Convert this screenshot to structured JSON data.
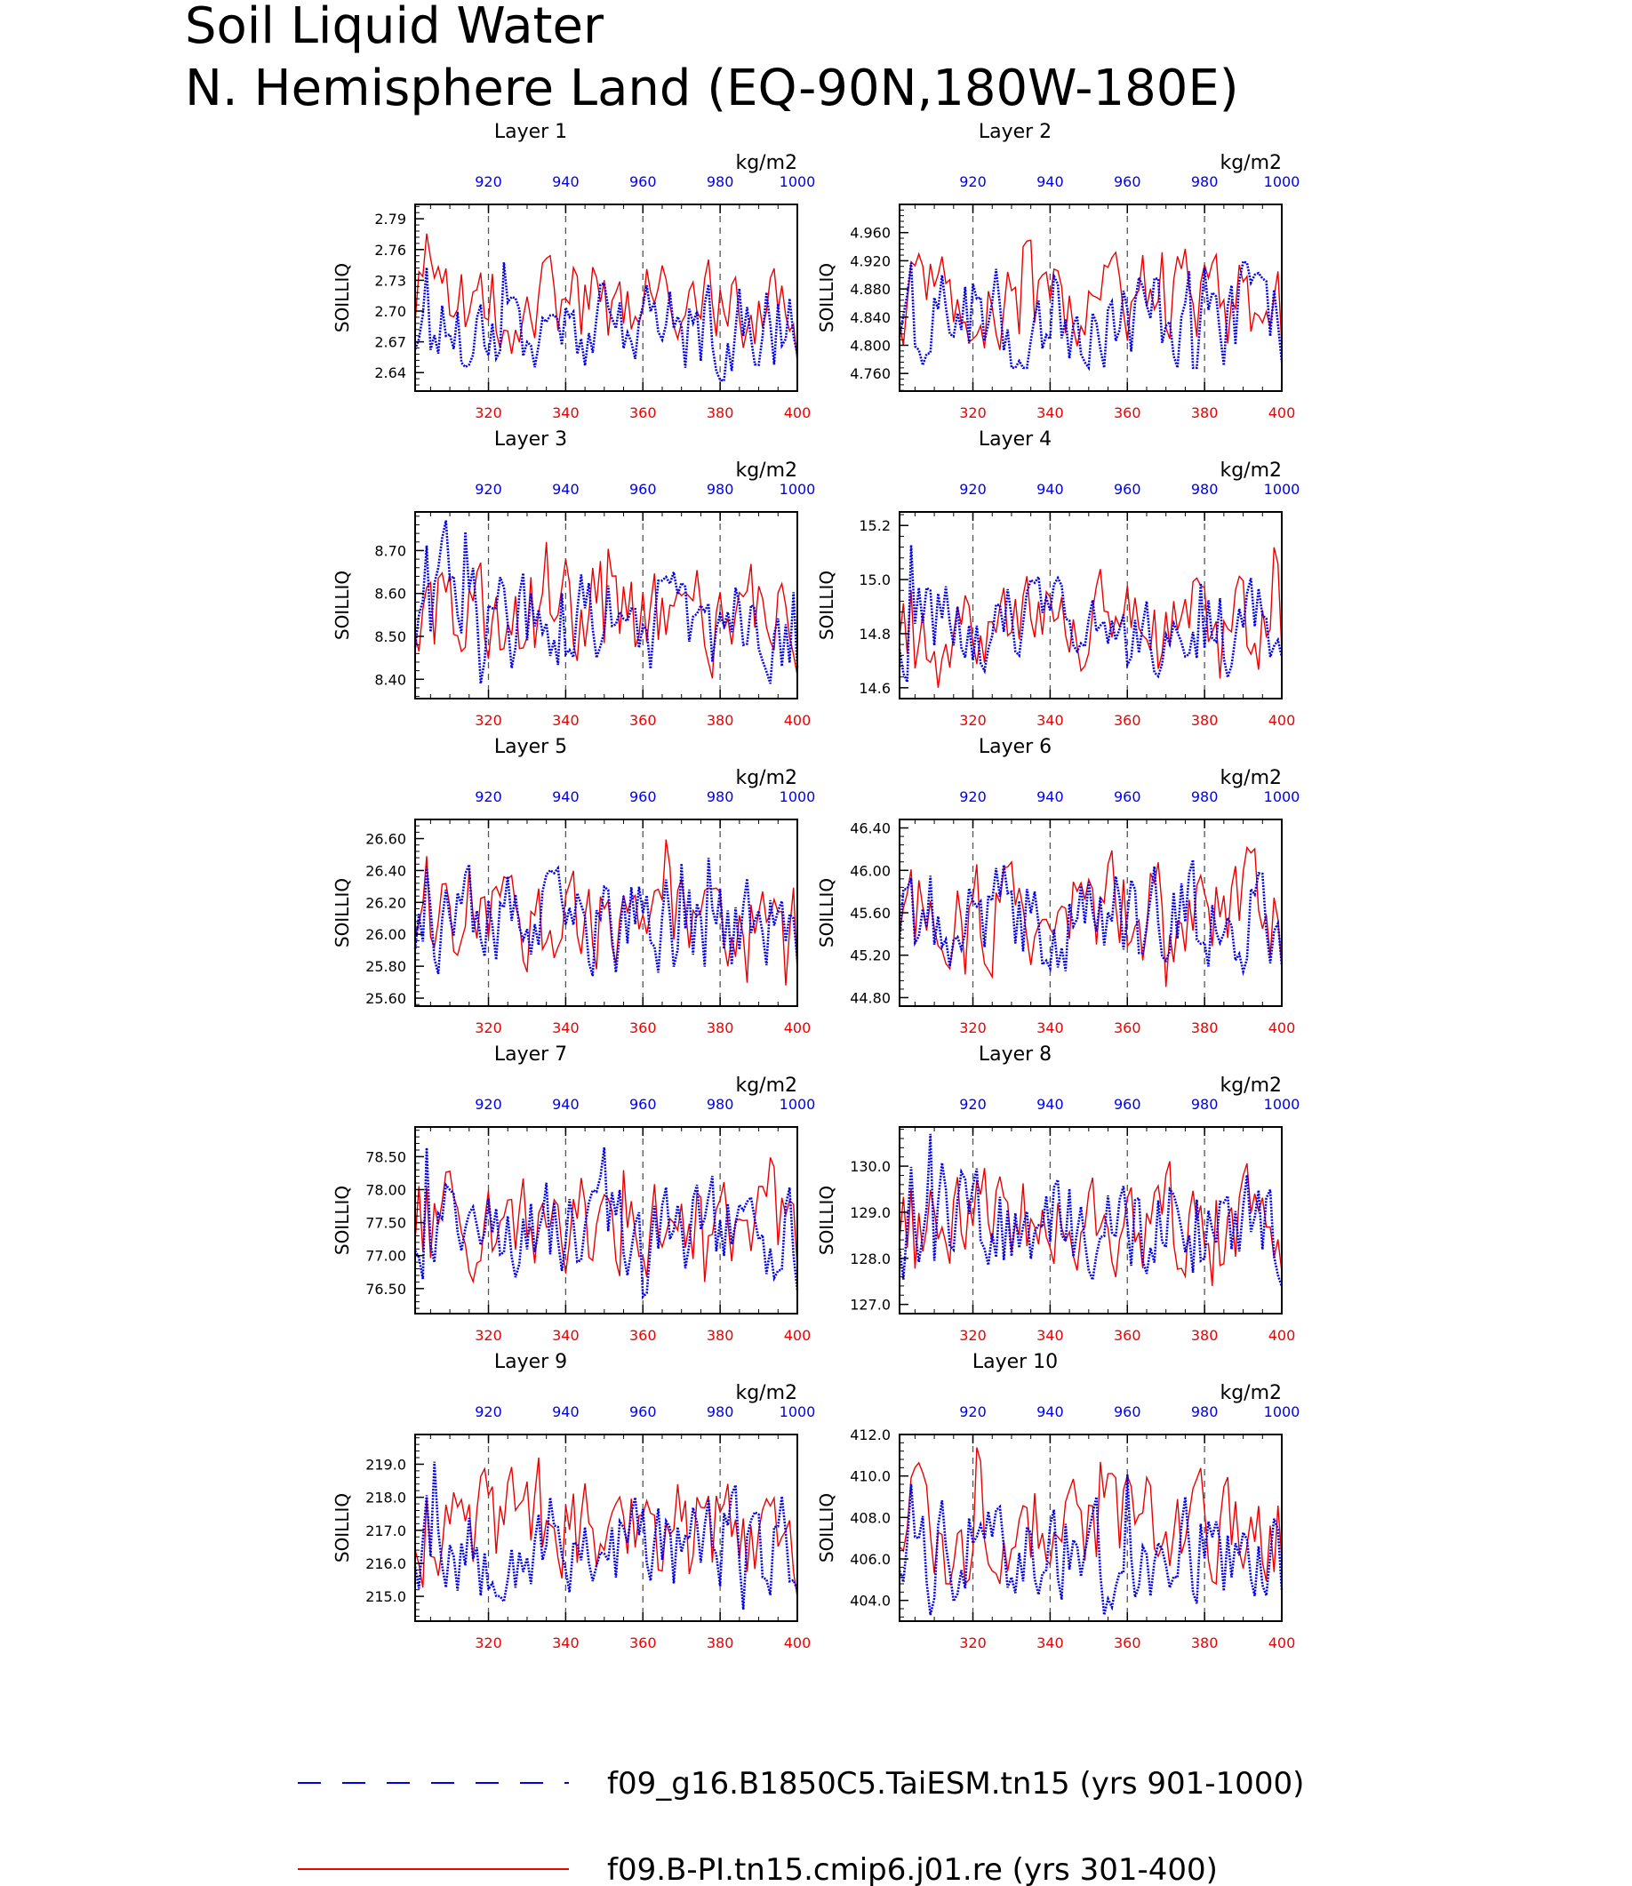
{
  "title_line1": "Soil Liquid Water",
  "title_line2": "N. Hemisphere Land (EQ-90N,180W-180E)",
  "units": "kg/m2",
  "ylabel": "SOILLIQ",
  "colors": {
    "series_a": "#0000ee",
    "series_b": "#ee0000",
    "axis": "#000000",
    "ref": "#555555"
  },
  "legend": [
    {
      "label": "f09_g16.B1850C5.TaiESM.tn15 (yrs 901-1000)",
      "color": "#0000ee",
      "style": "dashed"
    },
    {
      "label": "f09.B-PI.tn15.cmip6.j01.re (yrs 301-400)",
      "color": "#ee0000",
      "style": "solid"
    }
  ],
  "chart_data": [
    {
      "type": "line",
      "title": "Layer 1",
      "ylabel": "SOILLIQ",
      "ylim": [
        2.622,
        2.804
      ],
      "yticks": [
        2.64,
        2.67,
        2.7,
        2.73,
        2.76,
        2.79
      ],
      "ydec": 2,
      "x_bottom": {
        "range": [
          301,
          400
        ],
        "ticks": [
          320,
          340,
          360,
          380,
          400
        ]
      },
      "x_top": {
        "range": [
          901,
          1000
        ],
        "ticks": [
          920,
          940,
          960,
          980,
          1000
        ]
      },
      "series": [
        {
          "key": "a",
          "seed": 17,
          "base": 2.683,
          "amp": 0.018,
          "min": 2.632,
          "max": 2.77
        },
        {
          "key": "b",
          "seed": 101,
          "base": 2.707,
          "amp": 0.018,
          "min": 2.642,
          "max": 2.795
        }
      ]
    },
    {
      "type": "line",
      "title": "Layer 2",
      "ylabel": "SOILLIQ",
      "ylim": [
        4.735,
        5.0
      ],
      "yticks": [
        4.76,
        4.8,
        4.84,
        4.88,
        4.92,
        4.96
      ],
      "ydec": 3,
      "x_bottom": {
        "range": [
          301,
          400
        ],
        "ticks": [
          320,
          340,
          360,
          380,
          400
        ]
      },
      "x_top": {
        "range": [
          901,
          1000
        ],
        "ticks": [
          920,
          940,
          960,
          980,
          1000
        ]
      },
      "series": [
        {
          "key": "a",
          "seed": 23,
          "base": 4.845,
          "amp": 0.03,
          "min": 4.768,
          "max": 4.98
        },
        {
          "key": "b",
          "seed": 107,
          "base": 4.86,
          "amp": 0.028,
          "min": 4.745,
          "max": 4.96
        }
      ]
    },
    {
      "type": "line",
      "title": "Layer 3",
      "ylabel": "SOILLIQ",
      "ylim": [
        8.355,
        8.79
      ],
      "yticks": [
        8.4,
        8.5,
        8.6,
        8.7
      ],
      "ydec": 2,
      "x_bottom": {
        "range": [
          301,
          400
        ],
        "ticks": [
          320,
          340,
          360,
          380,
          400
        ]
      },
      "x_top": {
        "range": [
          901,
          1000
        ],
        "ticks": [
          920,
          940,
          960,
          980,
          1000
        ]
      },
      "series": [
        {
          "key": "a",
          "seed": 29,
          "base": 8.53,
          "amp": 0.05,
          "min": 8.39,
          "max": 8.77
        },
        {
          "key": "b",
          "seed": 113,
          "base": 8.55,
          "amp": 0.05,
          "min": 8.37,
          "max": 8.72
        }
      ]
    },
    {
      "type": "line",
      "title": "Layer 4",
      "ylabel": "SOILLIQ",
      "ylim": [
        14.56,
        15.25
      ],
      "yticks": [
        14.6,
        14.8,
        15.0,
        15.2
      ],
      "ydec": 1,
      "x_bottom": {
        "range": [
          301,
          400
        ],
        "ticks": [
          320,
          340,
          360,
          380,
          400
        ]
      },
      "x_top": {
        "range": [
          901,
          1000
        ],
        "ticks": [
          920,
          940,
          960,
          980,
          1000
        ]
      },
      "series": [
        {
          "key": "a",
          "seed": 31,
          "base": 14.82,
          "amp": 0.07,
          "min": 14.62,
          "max": 15.22
        },
        {
          "key": "b",
          "seed": 127,
          "base": 14.85,
          "amp": 0.07,
          "min": 14.6,
          "max": 15.15
        }
      ]
    },
    {
      "type": "line",
      "title": "Layer 5",
      "ylabel": "SOILLIQ",
      "ylim": [
        25.55,
        26.72
      ],
      "yticks": [
        25.6,
        25.8,
        26.0,
        26.2,
        26.4,
        26.6
      ],
      "ydec": 2,
      "x_bottom": {
        "range": [
          301,
          400
        ],
        "ticks": [
          320,
          340,
          360,
          380,
          400
        ]
      },
      "x_top": {
        "range": [
          901,
          1000
        ],
        "ticks": [
          920,
          940,
          960,
          980,
          1000
        ]
      },
      "series": [
        {
          "key": "a",
          "seed": 37,
          "base": 26.05,
          "amp": 0.13,
          "min": 25.66,
          "max": 26.68
        },
        {
          "key": "b",
          "seed": 131,
          "base": 26.1,
          "amp": 0.12,
          "min": 25.68,
          "max": 26.62
        }
      ]
    },
    {
      "type": "line",
      "title": "Layer 6",
      "ylabel": "SOILLIQ",
      "ylim": [
        44.72,
        46.48
      ],
      "yticks": [
        44.8,
        45.2,
        45.6,
        46.0,
        46.4
      ],
      "ydec": 2,
      "x_bottom": {
        "range": [
          301,
          400
        ],
        "ticks": [
          320,
          340,
          360,
          380,
          400
        ]
      },
      "x_top": {
        "range": [
          901,
          1000
        ],
        "ticks": [
          920,
          940,
          960,
          980,
          1000
        ]
      },
      "series": [
        {
          "key": "a",
          "seed": 41,
          "base": 45.55,
          "amp": 0.2,
          "min": 44.8,
          "max": 46.4
        },
        {
          "key": "b",
          "seed": 137,
          "base": 45.6,
          "amp": 0.2,
          "min": 44.9,
          "max": 46.3
        }
      ]
    },
    {
      "type": "line",
      "title": "Layer 7",
      "ylabel": "SOILLIQ",
      "ylim": [
        76.12,
        78.95
      ],
      "yticks": [
        76.5,
        77.0,
        77.5,
        78.0,
        78.5
      ],
      "ydec": 2,
      "x_bottom": {
        "range": [
          301,
          400
        ],
        "ticks": [
          320,
          340,
          360,
          380,
          400
        ]
      },
      "x_top": {
        "range": [
          901,
          1000
        ],
        "ticks": [
          920,
          940,
          960,
          980,
          1000
        ]
      },
      "series": [
        {
          "key": "a",
          "seed": 43,
          "base": 77.4,
          "amp": 0.3,
          "min": 76.2,
          "max": 78.8
        },
        {
          "key": "b",
          "seed": 139,
          "base": 77.5,
          "amp": 0.3,
          "min": 76.6,
          "max": 78.7
        }
      ]
    },
    {
      "type": "line",
      "title": "Layer 8",
      "ylabel": "SOILLIQ",
      "ylim": [
        126.8,
        130.85
      ],
      "yticks": [
        127.0,
        128.0,
        129.0,
        130.0
      ],
      "ydec": 1,
      "x_bottom": {
        "range": [
          301,
          400
        ],
        "ticks": [
          320,
          340,
          360,
          380,
          400
        ]
      },
      "x_top": {
        "range": [
          901,
          1000
        ],
        "ticks": [
          920,
          940,
          960,
          980,
          1000
        ]
      },
      "series": [
        {
          "key": "a",
          "seed": 47,
          "base": 128.7,
          "amp": 0.45,
          "min": 126.9,
          "max": 130.7
        },
        {
          "key": "b",
          "seed": 149,
          "base": 128.8,
          "amp": 0.45,
          "min": 127.4,
          "max": 130.6
        }
      ]
    },
    {
      "type": "line",
      "title": "Layer 9",
      "ylabel": "SOILLIQ",
      "ylim": [
        214.25,
        219.9
      ],
      "yticks": [
        215.0,
        216.0,
        217.0,
        218.0,
        219.0
      ],
      "ydec": 1,
      "x_bottom": {
        "range": [
          301,
          400
        ],
        "ticks": [
          320,
          340,
          360,
          380,
          400
        ]
      },
      "x_top": {
        "range": [
          901,
          1000
        ],
        "ticks": [
          920,
          940,
          960,
          980,
          1000
        ]
      },
      "series": [
        {
          "key": "a",
          "seed": 53,
          "base": 216.6,
          "amp": 0.65,
          "min": 214.6,
          "max": 219.6
        },
        {
          "key": "b",
          "seed": 151,
          "base": 217.0,
          "amp": 0.65,
          "min": 214.8,
          "max": 219.2
        }
      ]
    },
    {
      "type": "line",
      "title": "Layer 10",
      "ylabel": "SOILLIQ",
      "ylim": [
        403.0,
        412.0
      ],
      "yticks": [
        404.0,
        406.0,
        408.0,
        410.0,
        412.0
      ],
      "ydec": 1,
      "x_bottom": {
        "range": [
          301,
          400
        ],
        "ticks": [
          320,
          340,
          360,
          380,
          400
        ]
      },
      "x_top": {
        "range": [
          901,
          1000
        ],
        "ticks": [
          920,
          940,
          960,
          980,
          1000
        ]
      },
      "series": [
        {
          "key": "a",
          "seed": 59,
          "base": 406.5,
          "amp": 1.0,
          "min": 403.3,
          "max": 410.8
        },
        {
          "key": "b",
          "seed": 157,
          "base": 407.5,
          "amp": 1.0,
          "min": 404.8,
          "max": 411.6
        }
      ]
    }
  ]
}
